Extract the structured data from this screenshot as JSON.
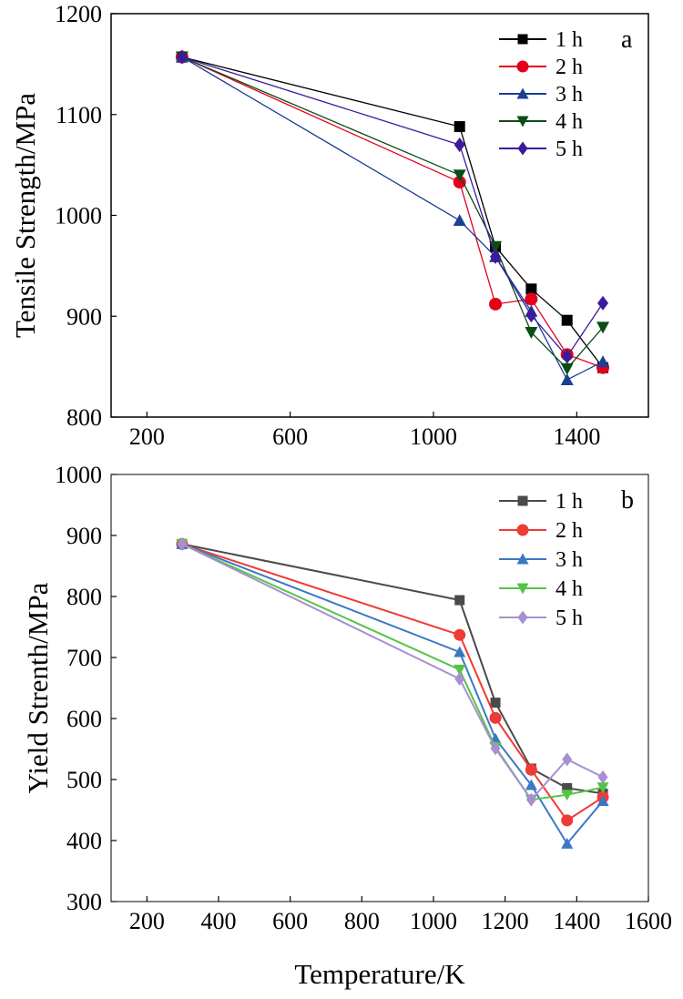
{
  "chart_data": [
    {
      "type": "line",
      "panel_label": "a",
      "xlabel": "",
      "ylabel": "Tensile Strength/MPa",
      "xlim": [
        100,
        1600
      ],
      "ylim": [
        800,
        1200
      ],
      "xticks": [
        200,
        600,
        1000,
        1400
      ],
      "yticks": [
        800,
        900,
        1000,
        1100,
        1200
      ],
      "grid": false,
      "legend": "top-right",
      "series": [
        {
          "name": "1 h",
          "color": "#000000",
          "marker": "square",
          "x": [
            298,
            1073,
            1173,
            1273,
            1373,
            1473
          ],
          "y": [
            1157,
            1088,
            969,
            927,
            896,
            849
          ]
        },
        {
          "name": "2 h",
          "color": "#e3001b",
          "marker": "circle",
          "x": [
            298,
            1073,
            1173,
            1273,
            1373,
            1473
          ],
          "y": [
            1157,
            1033,
            912,
            917,
            862,
            849
          ]
        },
        {
          "name": "3 h",
          "color": "#1c3f94",
          "marker": "triangle-up",
          "x": [
            298,
            1073,
            1173,
            1273,
            1373,
            1473
          ],
          "y": [
            1157,
            995,
            959,
            905,
            837,
            855
          ]
        },
        {
          "name": "4 h",
          "color": "#0a4d14",
          "marker": "triangle-down",
          "x": [
            298,
            1073,
            1173,
            1273,
            1373,
            1473
          ],
          "y": [
            1157,
            1040,
            969,
            884,
            848,
            889
          ]
        },
        {
          "name": "5 h",
          "color": "#3b1a9c",
          "marker": "diamond",
          "x": [
            298,
            1073,
            1173,
            1273,
            1373,
            1473
          ],
          "y": [
            1157,
            1070,
            959,
            901,
            860,
            913
          ]
        }
      ]
    },
    {
      "type": "line",
      "panel_label": "b",
      "xlabel": "Temperature/K",
      "ylabel": "Yield Strenth/MPa",
      "xlim": [
        100,
        1600
      ],
      "ylim": [
        300,
        1000
      ],
      "xticks": [
        200,
        400,
        600,
        800,
        1000,
        1200,
        1400,
        1600
      ],
      "yticks": [
        300,
        400,
        500,
        600,
        700,
        800,
        900,
        1000
      ],
      "grid": false,
      "legend": "top-right",
      "series": [
        {
          "name": "1 h",
          "color": "#4a4a4a",
          "marker": "square",
          "x": [
            298,
            1073,
            1173,
            1273,
            1373,
            1473
          ],
          "y": [
            886,
            794,
            626,
            518,
            486,
            477
          ]
        },
        {
          "name": "2 h",
          "color": "#ee3b36",
          "marker": "circle",
          "x": [
            298,
            1073,
            1173,
            1273,
            1373,
            1473
          ],
          "y": [
            886,
            737,
            601,
            516,
            433,
            471
          ]
        },
        {
          "name": "3 h",
          "color": "#3b78c4",
          "marker": "triangle-up",
          "x": [
            298,
            1073,
            1173,
            1273,
            1373,
            1473
          ],
          "y": [
            886,
            709,
            567,
            491,
            395,
            465
          ]
        },
        {
          "name": "4 h",
          "color": "#55c446",
          "marker": "triangle-down",
          "x": [
            298,
            1073,
            1173,
            1273,
            1373,
            1473
          ],
          "y": [
            886,
            680,
            553,
            467,
            475,
            487
          ]
        },
        {
          "name": "5 h",
          "color": "#a88fd0",
          "marker": "diamond",
          "x": [
            298,
            1073,
            1173,
            1273,
            1373,
            1473
          ],
          "y": [
            886,
            665,
            551,
            467,
            533,
            504
          ]
        }
      ]
    }
  ]
}
